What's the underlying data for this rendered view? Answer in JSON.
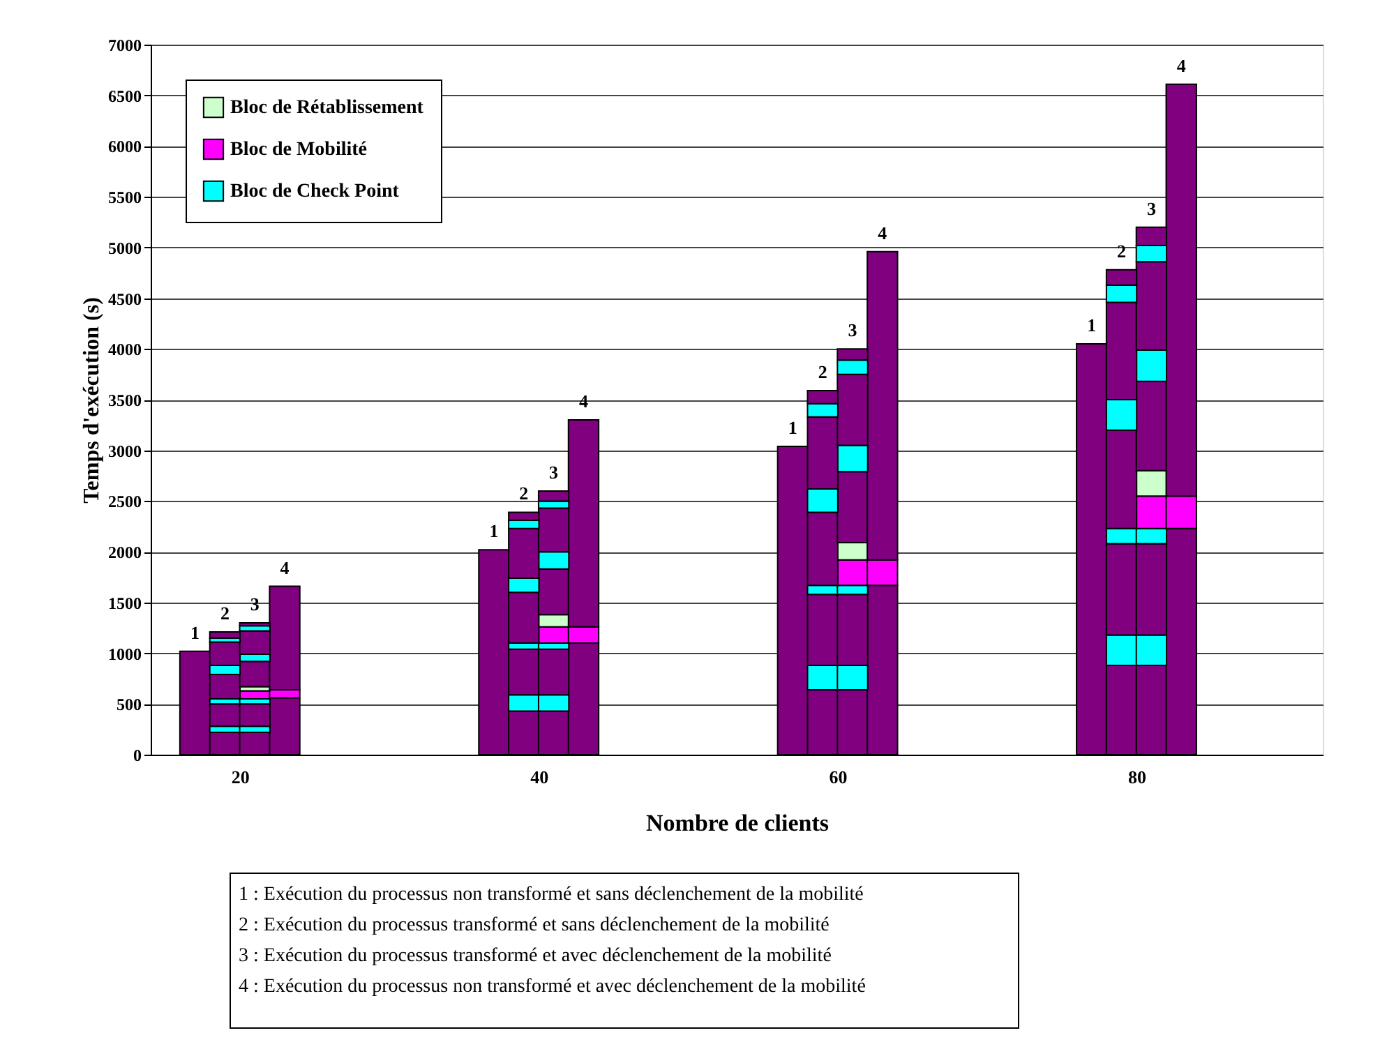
{
  "chart_data": {
    "type": "bar",
    "stacked": true,
    "xlabel": "Nombre de clients",
    "ylabel": "Temps d'exécution (s)",
    "x": [
      17,
      19,
      21,
      23,
      37,
      39,
      41,
      43,
      57,
      59,
      61,
      63,
      77,
      79,
      81,
      83
    ],
    "xlim": [
      14.5,
      92
    ],
    "xticks": [
      20,
      40,
      60,
      80
    ],
    "ylim": [
      0,
      7000
    ],
    "yticks": [
      0,
      500,
      1000,
      1500,
      2000,
      2500,
      3000,
      3500,
      4000,
      4500,
      5000,
      5500,
      6000,
      6500,
      7000
    ],
    "grid": "y",
    "legend": "top left",
    "series": [
      {
        "color": "#800080",
        "values": [
          1020,
          220,
          220,
          560,
          2020,
          430,
          430,
          1100,
          3040,
          640,
          640,
          1670,
          4050,
          880,
          880,
          2230
        ]
      },
      {
        "name": "Bloc de Check Point",
        "color": "#00ffff",
        "values": [
          null,
          60,
          60,
          null,
          null,
          160,
          160,
          null,
          null,
          240,
          240,
          null,
          null,
          300,
          300,
          null
        ]
      },
      {
        "color": "#800080",
        "values": [
          null,
          220,
          220,
          null,
          null,
          450,
          450,
          null,
          null,
          700,
          700,
          null,
          null,
          900,
          900,
          null
        ]
      },
      {
        "color": "#00ffff",
        "values": [
          null,
          50,
          50,
          null,
          null,
          60,
          60,
          null,
          null,
          90,
          90,
          null,
          null,
          150,
          150,
          null
        ]
      },
      {
        "name": "Bloc de Mobilité",
        "color": "#ff00ff",
        "values": [
          null,
          null,
          80,
          80,
          null,
          null,
          160,
          160,
          null,
          null,
          250,
          250,
          null,
          null,
          320,
          320
        ]
      },
      {
        "name": "Bloc de Rétablissement",
        "color": "#ccffcc",
        "values": [
          null,
          null,
          40,
          null,
          null,
          null,
          120,
          null,
          null,
          null,
          170,
          null,
          null,
          null,
          250,
          null
        ]
      },
      {
        "color": "#800080",
        "values": [
          null,
          240,
          250,
          1020,
          null,
          500,
          450,
          2040,
          null,
          720,
          700,
          3040,
          null,
          970,
          880,
          4060
        ]
      },
      {
        "color": "#00ffff",
        "values": [
          null,
          90,
          70,
          null,
          null,
          140,
          170,
          null,
          null,
          230,
          260,
          null,
          null,
          300,
          310,
          null
        ]
      },
      {
        "color": "#800080",
        "values": [
          null,
          230,
          230,
          null,
          null,
          490,
          430,
          null,
          null,
          710,
          700,
          null,
          null,
          960,
          870,
          null
        ]
      },
      {
        "color": "#00ffff",
        "values": [
          null,
          40,
          50,
          null,
          null,
          80,
          70,
          null,
          null,
          130,
          140,
          null,
          null,
          170,
          160,
          null
        ]
      },
      {
        "color": "#800080",
        "values": [
          null,
          60,
          30,
          null,
          null,
          80,
          100,
          null,
          null,
          130,
          110,
          null,
          null,
          150,
          180,
          null
        ]
      }
    ],
    "annotations": [
      {
        "text": "1",
        "x": 17,
        "y": 1020
      },
      {
        "text": "2",
        "x": 19,
        "y": 1210
      },
      {
        "text": "3",
        "x": 21,
        "y": 1300
      },
      {
        "text": "4",
        "x": 23,
        "y": 1660
      },
      {
        "text": "1",
        "x": 37,
        "y": 2020
      },
      {
        "text": "2",
        "x": 39,
        "y": 2390
      },
      {
        "text": "3",
        "x": 41,
        "y": 2600
      },
      {
        "text": "4",
        "x": 43,
        "y": 3300
      },
      {
        "text": "1",
        "x": 57,
        "y": 3040
      },
      {
        "text": "2",
        "x": 59,
        "y": 3590
      },
      {
        "text": "3",
        "x": 61,
        "y": 4000
      },
      {
        "text": "4",
        "x": 63,
        "y": 4960
      },
      {
        "text": "1",
        "x": 77,
        "y": 4050
      },
      {
        "text": "2",
        "x": 79,
        "y": 4780
      },
      {
        "text": "3",
        "x": 81,
        "y": 5200
      },
      {
        "text": "4",
        "x": 83,
        "y": 6610
      },
      "1 : Exécution  du processus non transformé et sans déclenchement  de la mobilité",
      "2 : Exécution  du processus transformé et sans déclenchement  de la mobilité",
      "3 : Exécution  du processus transformé et avec déclenchement  de la mobilité",
      "4 : Exécution  du processus non transformé et avec déclenchement  de la mobilité"
    ]
  }
}
